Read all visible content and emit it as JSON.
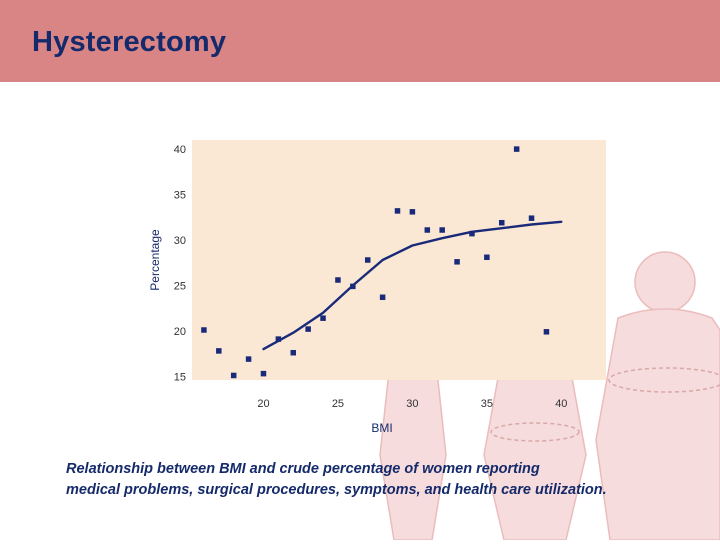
{
  "slide": {
    "title": "Hysterectomy",
    "caption_line1": "Relationship between BMI and crude percentage of women reporting",
    "caption_line2": "medical problems, surgical procedures, symptoms, and health care utilization."
  },
  "colors": {
    "header_bg": "#d98585",
    "title_text": "#152a6b",
    "plot_bg": "#fbe8d4",
    "marker": "#1a2a7a",
    "silhouette_fill": "#f6dcdc",
    "silhouette_stroke": "#ecbcbc"
  },
  "chart_data": {
    "type": "scatter",
    "title": "",
    "xlabel": "BMI",
    "ylabel": "Percentage",
    "xlim": [
      15.2,
      43
    ],
    "ylim": [
      14.6,
      41
    ],
    "x_ticks": [
      20,
      25,
      30,
      35,
      40
    ],
    "y_ticks": [
      15,
      20,
      25,
      30,
      35,
      40
    ],
    "grid": false,
    "series": [
      {
        "values_xy": [
          [
            16,
            20.1
          ],
          [
            17,
            17.8
          ],
          [
            18,
            15.1
          ],
          [
            19,
            16.9
          ],
          [
            20,
            15.3
          ],
          [
            21,
            19.1
          ],
          [
            22,
            17.6
          ],
          [
            23,
            20.2
          ],
          [
            24,
            21.4
          ],
          [
            25,
            25.6
          ],
          [
            26,
            24.9
          ],
          [
            27,
            27.8
          ],
          [
            28,
            23.7
          ],
          [
            29,
            33.2
          ],
          [
            30,
            33.1
          ],
          [
            31,
            31.1
          ],
          [
            32,
            31.1
          ],
          [
            33,
            27.6
          ],
          [
            34,
            30.7
          ],
          [
            35,
            28.1
          ],
          [
            36,
            31.9
          ],
          [
            37,
            40.0
          ],
          [
            38,
            32.4
          ],
          [
            39,
            19.9
          ]
        ]
      }
    ],
    "trend_line": [
      [
        20,
        18.0
      ],
      [
        22,
        19.8
      ],
      [
        24,
        22.0
      ],
      [
        26,
        25.0
      ],
      [
        28,
        27.8
      ],
      [
        30,
        29.4
      ],
      [
        32,
        30.2
      ],
      [
        34,
        30.9
      ],
      [
        36,
        31.3
      ],
      [
        38,
        31.7
      ],
      [
        40,
        32.0
      ]
    ]
  }
}
